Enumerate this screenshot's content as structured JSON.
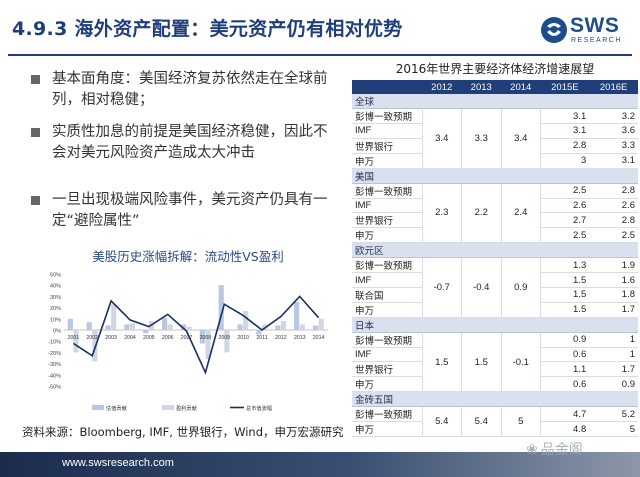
{
  "header": {
    "title": "4.9.3 海外资产配置：美元资产仍有相对优势",
    "logo_text": "SWS",
    "logo_sub": "RESEARCH"
  },
  "bullets": [
    "基本面角度：美国经济复苏依然走在全球前列，相对稳健；",
    "实质性加息的前提是美国经济稳健，因此不会对美元风险资产造成太大冲击",
    "一旦出现极端风险事件，美元资产仍具有一定“避险属性”"
  ],
  "chart_data": {
    "type": "bar",
    "title": "美股历史涨幅拆解：流动性VS盈利",
    "categories": [
      "2001",
      "2002",
      "2003",
      "2004",
      "2005",
      "2006",
      "2007",
      "2008",
      "2009",
      "2010",
      "2011",
      "2012",
      "2013",
      "2014"
    ],
    "y_ticks": [
      "50%",
      "40%",
      "30%",
      "20%",
      "10%",
      "0%",
      "-10%",
      "-20%",
      "-30%",
      "-40%",
      "-50%"
    ],
    "ylim": [
      -50,
      50
    ],
    "series": [
      {
        "name": "估值贡献",
        "kind": "bar",
        "color": "#b8c8e0",
        "values": [
          10,
          7,
          4,
          5,
          -3,
          11,
          5,
          -12,
          40,
          5,
          -4,
          4,
          25,
          4
        ]
      },
      {
        "name": "盈利贡献",
        "kind": "bar",
        "color": "#d0d6e2",
        "values": [
          -20,
          -28,
          23,
          6,
          8,
          5,
          3,
          -26,
          -20,
          17,
          5,
          8,
          5,
          10
        ]
      },
      {
        "name": "总市值涨幅",
        "kind": "line",
        "color": "#1a2f66",
        "values": [
          -12,
          -23,
          26,
          9,
          3,
          14,
          -1,
          -38,
          23,
          13,
          0,
          12,
          30,
          11
        ]
      }
    ]
  },
  "source": "资料来源：Bloomberg, IMF, 世界银行，Wind，申万宏源研究",
  "table": {
    "title": "2016年世界主要经济体经济增速展望",
    "headers": [
      "",
      "2012",
      "2013",
      "2014",
      "2015E",
      "2016E"
    ],
    "groups": [
      {
        "region": "全球",
        "actual": [
          "3.4",
          "3.3",
          "3.4"
        ],
        "rows": [
          {
            "source": "彭博一致预期",
            "e2015": "3.1",
            "e2016": "3.2"
          },
          {
            "source": "IMF",
            "e2015": "3.1",
            "e2016": "3.6"
          },
          {
            "source": "世界银行",
            "e2015": "2.8",
            "e2016": "3.3"
          },
          {
            "source": "申万",
            "e2015": "3",
            "e2016": "3.1"
          }
        ]
      },
      {
        "region": "美国",
        "actual": [
          "2.3",
          "2.2",
          "2.4"
        ],
        "rows": [
          {
            "source": "彭博一致预期",
            "e2015": "2.5",
            "e2016": "2.8"
          },
          {
            "source": "IMF",
            "e2015": "2.6",
            "e2016": "2.6"
          },
          {
            "source": "世界银行",
            "e2015": "2.7",
            "e2016": "2.8"
          },
          {
            "source": "申万",
            "e2015": "2.5",
            "e2016": "2.5"
          }
        ]
      },
      {
        "region": "欧元区",
        "actual": [
          "-0.7",
          "-0.4",
          "0.9"
        ],
        "rows": [
          {
            "source": "彭博一致预期",
            "e2015": "1.3",
            "e2016": "1.9"
          },
          {
            "source": "IMF",
            "e2015": "1.5",
            "e2016": "1.6"
          },
          {
            "source": "联合国",
            "e2015": "1.5",
            "e2016": "1.8"
          },
          {
            "source": "申万",
            "e2015": "1.5",
            "e2016": "1.7"
          }
        ]
      },
      {
        "region": "日本",
        "actual": [
          "1.5",
          "1.5",
          "-0.1"
        ],
        "rows": [
          {
            "source": "彭博一致预期",
            "e2015": "0.9",
            "e2016": "1"
          },
          {
            "source": "IMF",
            "e2015": "0.6",
            "e2016": "1"
          },
          {
            "source": "世界银行",
            "e2015": "1.1",
            "e2016": "1.7"
          },
          {
            "source": "申万",
            "e2015": "0.6",
            "e2016": "0.9"
          }
        ]
      },
      {
        "region": "金砖五国",
        "actual": [
          "5.4",
          "5.4",
          "5"
        ],
        "rows": [
          {
            "source": "彭博一致预期",
            "e2015": "4.7",
            "e2016": "5.2"
          },
          {
            "source": "申万",
            "e2015": "4.8",
            "e2016": "5"
          }
        ]
      }
    ]
  },
  "footer": {
    "url": "www.swsresearch.com",
    "watermark": "品金阁"
  },
  "colors": {
    "title": "#1f3e7a",
    "table_header": "#1f3e7a",
    "region_row": "#d9e1ee"
  }
}
